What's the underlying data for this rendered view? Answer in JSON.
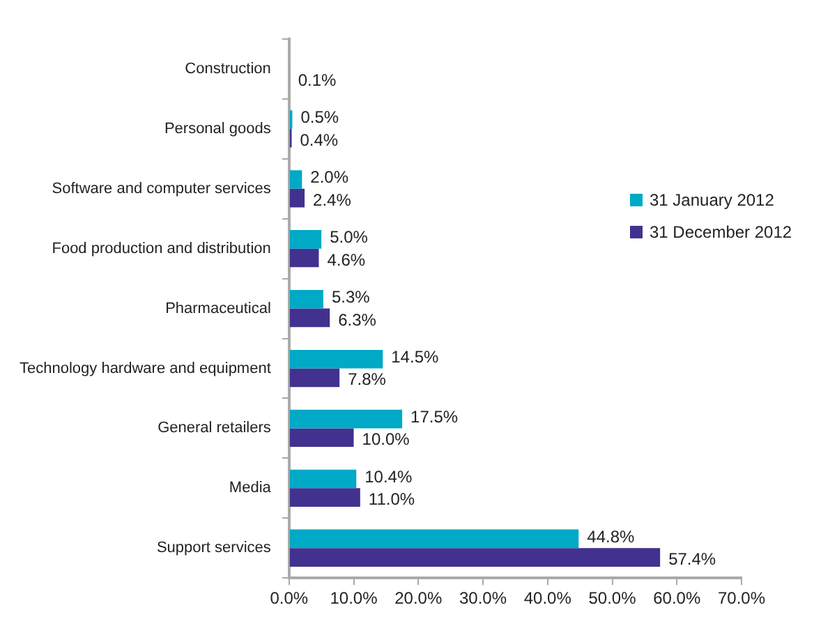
{
  "chart_data": {
    "type": "bar",
    "orientation": "horizontal",
    "categories": [
      "Construction",
      "Personal goods",
      "Software and computer services",
      "Food production and distribution",
      "Pharmaceutical",
      "Technology hardware and equipment",
      "General retailers",
      "Media",
      "Support services"
    ],
    "series": [
      {
        "name": "31 January 2012",
        "color": "#00a9c6",
        "values": [
          null,
          0.5,
          2.0,
          5.0,
          5.3,
          14.5,
          17.5,
          10.4,
          44.8
        ],
        "value_labels": [
          null,
          "0.5%",
          "2.0%",
          "5.0%",
          "5.3%",
          "14.5%",
          "17.5%",
          "10.4%",
          "44.8%"
        ]
      },
      {
        "name": "31 December 2012",
        "color": "#43318f",
        "values": [
          0.1,
          0.4,
          2.4,
          4.6,
          6.3,
          7.8,
          10.0,
          11.0,
          57.4
        ],
        "value_labels": [
          "0.1%",
          "0.4%",
          "2.4%",
          "4.6%",
          "6.3%",
          "7.8%",
          "10.0%",
          "11.0%",
          "57.4%"
        ]
      }
    ],
    "xlim": [
      0,
      70
    ],
    "xticks": [
      {
        "value": 0,
        "label": "0.0%"
      },
      {
        "value": 10,
        "label": "10.0%"
      },
      {
        "value": 20,
        "label": "20.0%"
      },
      {
        "value": 30,
        "label": "30.0%"
      },
      {
        "value": 40,
        "label": "40.0%"
      },
      {
        "value": 50,
        "label": "50.0%"
      },
      {
        "value": 60,
        "label": "60.0%"
      },
      {
        "value": 70,
        "label": "70.0%"
      }
    ],
    "grid": false,
    "legend": "right"
  }
}
